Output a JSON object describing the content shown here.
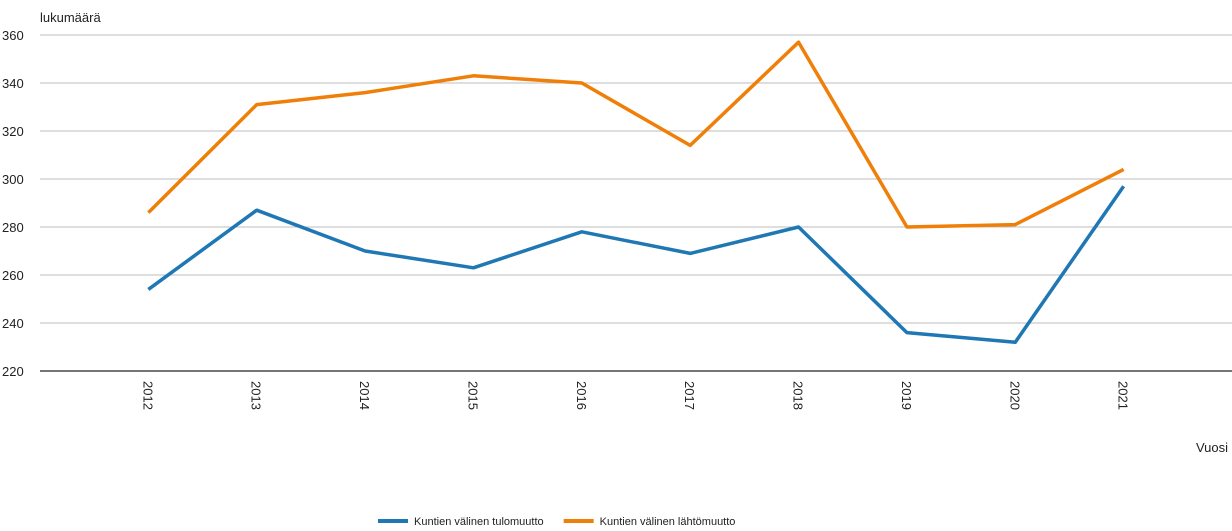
{
  "chart_data": {
    "type": "line",
    "y_axis_label": "lukumäärä",
    "x_axis_label": "Vuosi",
    "categories": [
      "2012",
      "2013",
      "2014",
      "2015",
      "2016",
      "2017",
      "2018",
      "2019",
      "2020",
      "2021"
    ],
    "series": [
      {
        "name": "Kuntien välinen tulomuutto",
        "color": "#1f77b4",
        "values": [
          254,
          287,
          270,
          263,
          278,
          269,
          280,
          236,
          232,
          297
        ]
      },
      {
        "name": "Kuntien välinen lähtömuutto",
        "color": "#f07f09",
        "values": [
          286,
          331,
          336,
          343,
          340,
          314,
          357,
          280,
          281,
          304
        ]
      }
    ],
    "ylim": [
      220,
      360
    ],
    "yticks": [
      220,
      240,
      260,
      280,
      300,
      320,
      340,
      360
    ],
    "grid": true,
    "legend": "bottom"
  }
}
